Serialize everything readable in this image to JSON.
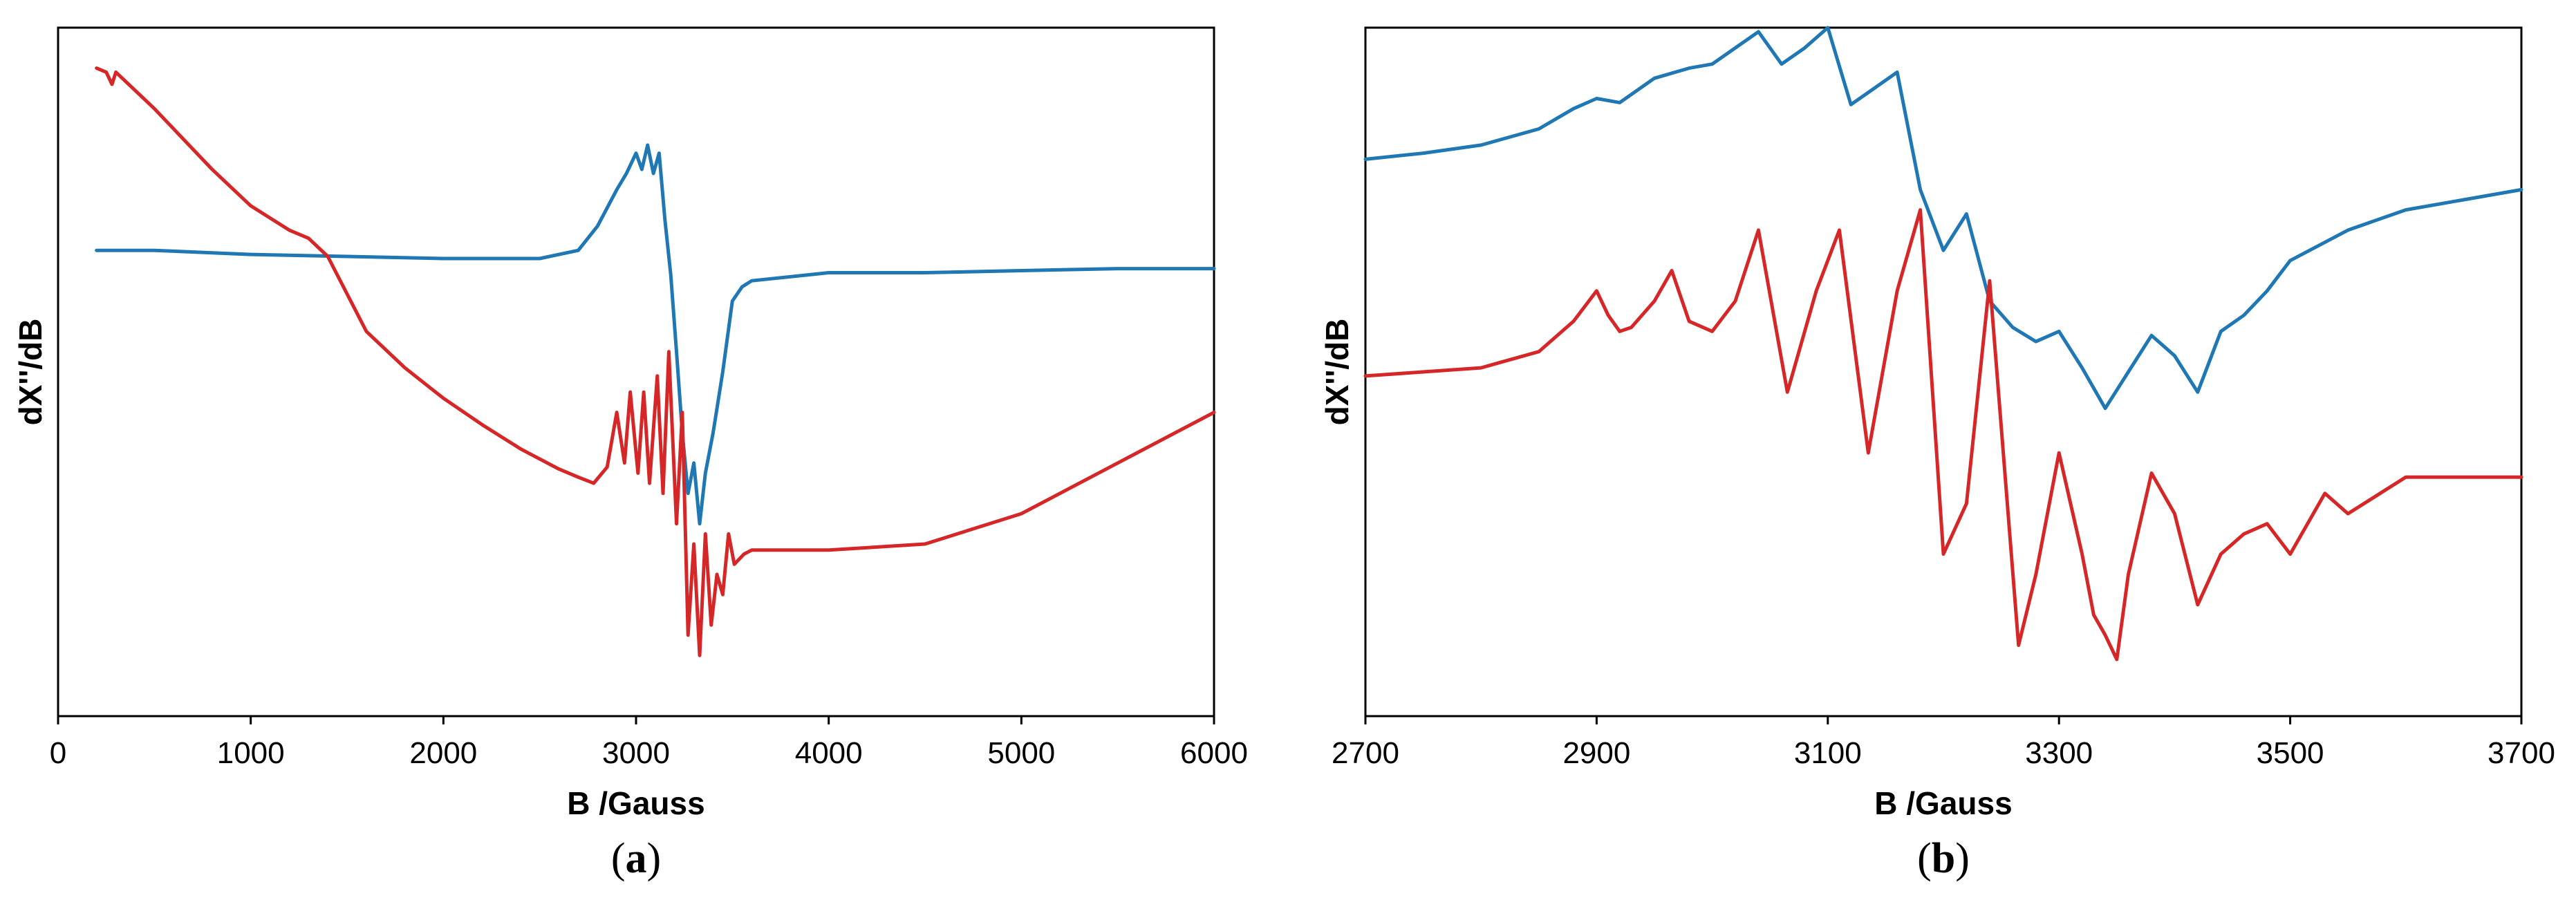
{
  "colors": {
    "blue": "#1f77b4",
    "red": "#d62728"
  },
  "chart_data": [
    {
      "type": "line",
      "panel": "a",
      "panel_label": [
        "(",
        "a",
        ")"
      ],
      "xlabel": "B /Gauss",
      "ylabel": "dX''/dB",
      "xlim": [
        0,
        6000
      ],
      "xticks": [
        0,
        1000,
        2000,
        3000,
        4000,
        5000,
        6000
      ],
      "ylim": [
        -1.8,
        1.6
      ],
      "yticks_visible": false,
      "grid": false,
      "series": [
        {
          "color": "blue",
          "x": [
            200,
            500,
            1000,
            1500,
            2000,
            2500,
            2700,
            2800,
            2900,
            2950,
            3000,
            3030,
            3060,
            3090,
            3120,
            3150,
            3180,
            3210,
            3240,
            3270,
            3300,
            3330,
            3360,
            3400,
            3450,
            3500,
            3550,
            3600,
            4000,
            4500,
            5000,
            5500,
            6000
          ],
          "y": [
            0.5,
            0.5,
            0.48,
            0.47,
            0.46,
            0.46,
            0.5,
            0.62,
            0.8,
            0.88,
            0.98,
            0.9,
            1.02,
            0.88,
            0.98,
            0.65,
            0.38,
            0.0,
            -0.4,
            -0.7,
            -0.55,
            -0.85,
            -0.6,
            -0.4,
            -0.1,
            0.25,
            0.32,
            0.35,
            0.39,
            0.39,
            0.4,
            0.41,
            0.41
          ]
        },
        {
          "color": "red",
          "x": [
            200,
            250,
            280,
            300,
            500,
            800,
            1000,
            1200,
            1300,
            1400,
            1600,
            1800,
            2000,
            2200,
            2400,
            2600,
            2700,
            2780,
            2850,
            2900,
            2940,
            2970,
            3010,
            3040,
            3070,
            3110,
            3140,
            3170,
            3210,
            3240,
            3270,
            3300,
            3330,
            3360,
            3390,
            3420,
            3450,
            3480,
            3510,
            3560,
            3600,
            4000,
            4500,
            5000,
            5500,
            6000
          ],
          "y": [
            1.4,
            1.38,
            1.32,
            1.38,
            1.2,
            0.9,
            0.72,
            0.6,
            0.56,
            0.47,
            0.1,
            -0.08,
            -0.23,
            -0.36,
            -0.48,
            -0.58,
            -0.62,
            -0.65,
            -0.57,
            -0.3,
            -0.55,
            -0.2,
            -0.6,
            -0.2,
            -0.65,
            -0.12,
            -0.7,
            0.0,
            -0.85,
            -0.3,
            -1.4,
            -0.95,
            -1.5,
            -0.9,
            -1.35,
            -1.1,
            -1.2,
            -0.9,
            -1.05,
            -1.0,
            -0.98,
            -0.98,
            -0.95,
            -0.8,
            -0.55,
            -0.3
          ]
        }
      ]
    },
    {
      "type": "line",
      "panel": "b",
      "panel_label": [
        "(",
        "b",
        ")"
      ],
      "xlabel": "B /Gauss",
      "ylabel": "dX''/dB",
      "xlim": [
        2700,
        3700
      ],
      "xticks": [
        2700,
        2900,
        3100,
        3300,
        3500,
        3700
      ],
      "ylim": [
        -1.6,
        1.8
      ],
      "yticks_visible": false,
      "grid": false,
      "series": [
        {
          "color": "blue",
          "x": [
            2700,
            2750,
            2800,
            2850,
            2880,
            2900,
            2920,
            2950,
            2980,
            3000,
            3020,
            3040,
            3060,
            3080,
            3100,
            3120,
            3140,
            3160,
            3180,
            3200,
            3220,
            3240,
            3260,
            3280,
            3300,
            3320,
            3340,
            3360,
            3380,
            3400,
            3420,
            3440,
            3460,
            3480,
            3500,
            3550,
            3600,
            3650,
            3700
          ],
          "y": [
            1.15,
            1.18,
            1.22,
            1.3,
            1.4,
            1.45,
            1.43,
            1.55,
            1.6,
            1.62,
            1.7,
            1.78,
            1.62,
            1.7,
            1.8,
            1.42,
            1.5,
            1.58,
            1.0,
            0.7,
            0.88,
            0.45,
            0.32,
            0.25,
            0.3,
            0.12,
            -0.08,
            0.1,
            0.28,
            0.18,
            0.0,
            0.3,
            0.38,
            0.5,
            0.65,
            0.8,
            0.9,
            0.95,
            1.0
          ]
        },
        {
          "color": "red",
          "x": [
            2700,
            2750,
            2800,
            2850,
            2880,
            2900,
            2910,
            2920,
            2930,
            2950,
            2965,
            2980,
            3000,
            3020,
            3040,
            3065,
            3090,
            3110,
            3135,
            3160,
            3180,
            3200,
            3220,
            3240,
            3265,
            3280,
            3300,
            3320,
            3330,
            3340,
            3350,
            3360,
            3380,
            3400,
            3420,
            3440,
            3460,
            3480,
            3500,
            3530,
            3550,
            3600,
            3650,
            3700
          ],
          "y": [
            0.08,
            0.1,
            0.12,
            0.2,
            0.35,
            0.5,
            0.38,
            0.3,
            0.32,
            0.45,
            0.6,
            0.35,
            0.3,
            0.45,
            0.8,
            0.0,
            0.5,
            0.8,
            -0.3,
            0.5,
            0.9,
            -0.8,
            -0.55,
            0.55,
            -1.25,
            -0.9,
            -0.3,
            -0.8,
            -1.1,
            -1.2,
            -1.32,
            -0.9,
            -0.4,
            -0.6,
            -1.05,
            -0.8,
            -0.7,
            -0.65,
            -0.8,
            -0.5,
            -0.6,
            -0.42,
            -0.42,
            -0.42
          ]
        }
      ]
    }
  ]
}
